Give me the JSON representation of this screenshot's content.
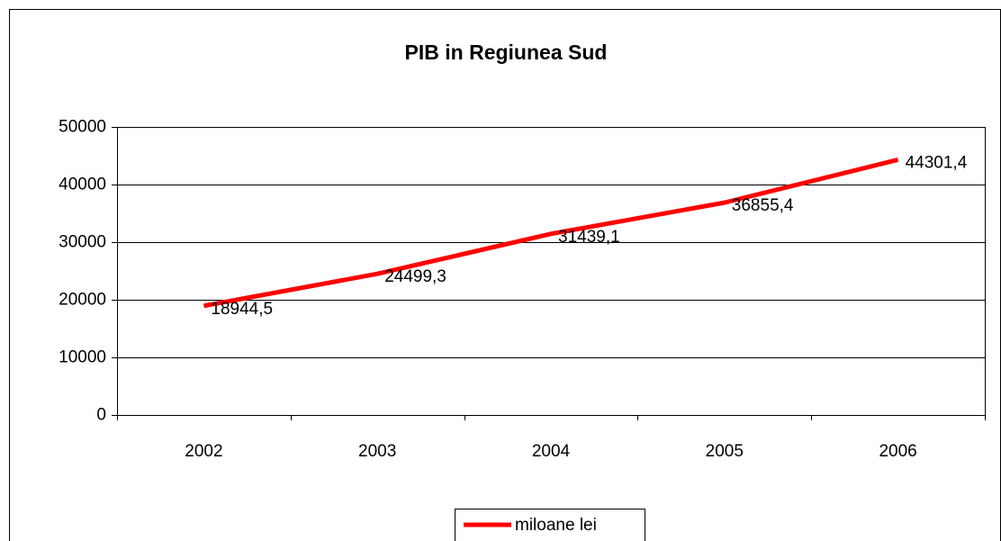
{
  "chart_data": {
    "type": "line",
    "title": "PIB in Regiunea Sud",
    "categories": [
      "2002",
      "2003",
      "2004",
      "2005",
      "2006"
    ],
    "series": [
      {
        "name": "miloane lei",
        "color": "#ff0000",
        "values": [
          18944.5,
          24499.3,
          31439.1,
          36855.4,
          44301.4
        ],
        "value_labels": [
          "18944,5",
          "24499,3",
          "31439,1",
          "36855,4",
          "44301,4"
        ]
      }
    ],
    "ylim": [
      0,
      50000
    ],
    "yticks": [
      0,
      10000,
      20000,
      30000,
      40000,
      50000
    ],
    "grid": true,
    "legend": "bottom"
  }
}
